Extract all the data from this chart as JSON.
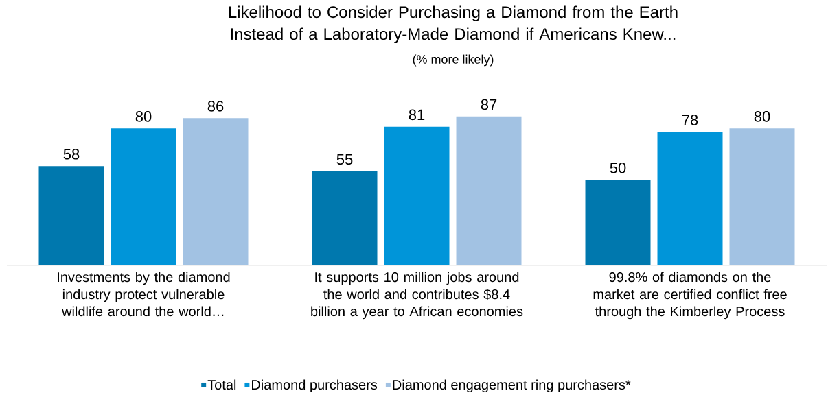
{
  "chart_data": {
    "type": "bar",
    "title": "Likelihood to Consider Purchasing a Diamond from the Earth Instead of a Laboratory-Made Diamond if Americans Knew...",
    "subtitle": "(% more likely)",
    "categories": [
      "Investments by the diamond industry protect vulnerable wildlife around the world…",
      "It supports 10 million jobs around the world and contributes $8.4 billion a year to African economies",
      "99.8% of diamonds on the market are certified conflict free through the Kimberley Process"
    ],
    "series": [
      {
        "name": "Total",
        "color": "#0078ae",
        "values": [
          58,
          55,
          50
        ]
      },
      {
        "name": "Diamond purchasers",
        "color": "#0095d9",
        "values": [
          80,
          81,
          78
        ]
      },
      {
        "name": "Diamond engagement ring purchasers*",
        "color": "#a2c2e3",
        "values": [
          86,
          87,
          80
        ]
      }
    ],
    "data_labels": true,
    "legend": "bottom"
  }
}
